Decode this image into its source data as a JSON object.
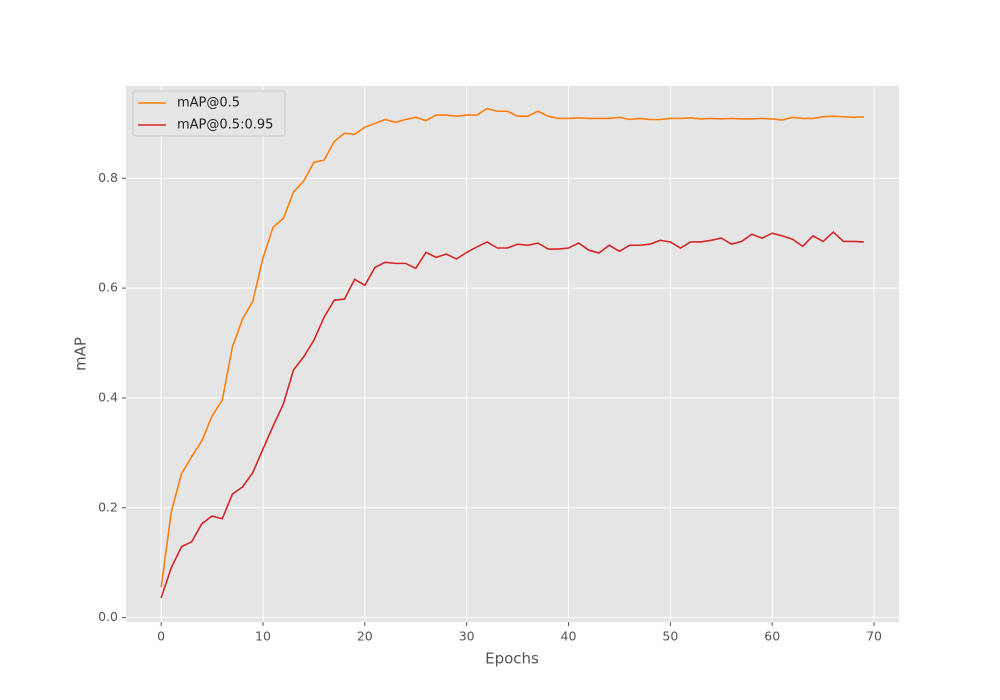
{
  "chart_data": {
    "type": "line",
    "xlabel": "Epochs",
    "ylabel": "mAP",
    "x": [
      0,
      1,
      2,
      3,
      4,
      5,
      6,
      7,
      8,
      9,
      10,
      11,
      12,
      13,
      14,
      15,
      16,
      17,
      18,
      19,
      20,
      21,
      22,
      23,
      24,
      25,
      26,
      27,
      28,
      29,
      30,
      31,
      32,
      33,
      34,
      35,
      36,
      37,
      38,
      39,
      40,
      41,
      42,
      43,
      44,
      45,
      46,
      47,
      48,
      49,
      50,
      51,
      52,
      53,
      54,
      55,
      56,
      57,
      58,
      59,
      60,
      61,
      62,
      63,
      64,
      65,
      66,
      67,
      68,
      69
    ],
    "series": [
      {
        "name": "mAP@0.5",
        "color": "#ff7f0e",
        "values": [
          0.055,
          0.193,
          0.262,
          0.293,
          0.322,
          0.367,
          0.396,
          0.493,
          0.544,
          0.576,
          0.655,
          0.711,
          0.727,
          0.775,
          0.795,
          0.829,
          0.833,
          0.867,
          0.882,
          0.88,
          0.893,
          0.9,
          0.907,
          0.902,
          0.907,
          0.911,
          0.905,
          0.915,
          0.915,
          0.913,
          0.915,
          0.915,
          0.927,
          0.922,
          0.922,
          0.913,
          0.913,
          0.922,
          0.913,
          0.909,
          0.909,
          0.91,
          0.909,
          0.909,
          0.909,
          0.911,
          0.907,
          0.909,
          0.907,
          0.907,
          0.909,
          0.909,
          0.91,
          0.908,
          0.909,
          0.908,
          0.909,
          0.908,
          0.908,
          0.909,
          0.908,
          0.906,
          0.911,
          0.909,
          0.909,
          0.912,
          0.913,
          0.912,
          0.911,
          0.912
        ]
      },
      {
        "name": "mAP@0.5:0.95",
        "color": "#d62728",
        "values": [
          0.036,
          0.091,
          0.129,
          0.138,
          0.171,
          0.185,
          0.18,
          0.225,
          0.238,
          0.264,
          0.307,
          0.349,
          0.389,
          0.451,
          0.475,
          0.505,
          0.547,
          0.578,
          0.58,
          0.616,
          0.605,
          0.638,
          0.647,
          0.645,
          0.645,
          0.636,
          0.665,
          0.656,
          0.662,
          0.653,
          0.665,
          0.675,
          0.684,
          0.673,
          0.673,
          0.68,
          0.678,
          0.682,
          0.671,
          0.671,
          0.673,
          0.682,
          0.669,
          0.664,
          0.678,
          0.667,
          0.678,
          0.678,
          0.68,
          0.687,
          0.684,
          0.673,
          0.684,
          0.684,
          0.687,
          0.691,
          0.68,
          0.685,
          0.698,
          0.691,
          0.7,
          0.695,
          0.689,
          0.676,
          0.695,
          0.685,
          0.702,
          0.685,
          0.685,
          0.684
        ]
      }
    ],
    "xlim": [
      -3.45,
      72.45
    ],
    "xticks": [
      0,
      10,
      20,
      30,
      40,
      50,
      60,
      70
    ],
    "ylim": [
      -0.008,
      0.968
    ],
    "yticks": [
      {
        "value": 0,
        "label": "0.0"
      },
      0.2,
      0.4,
      0.6,
      0.8
    ],
    "grid": true,
    "legend": "upper-left"
  }
}
